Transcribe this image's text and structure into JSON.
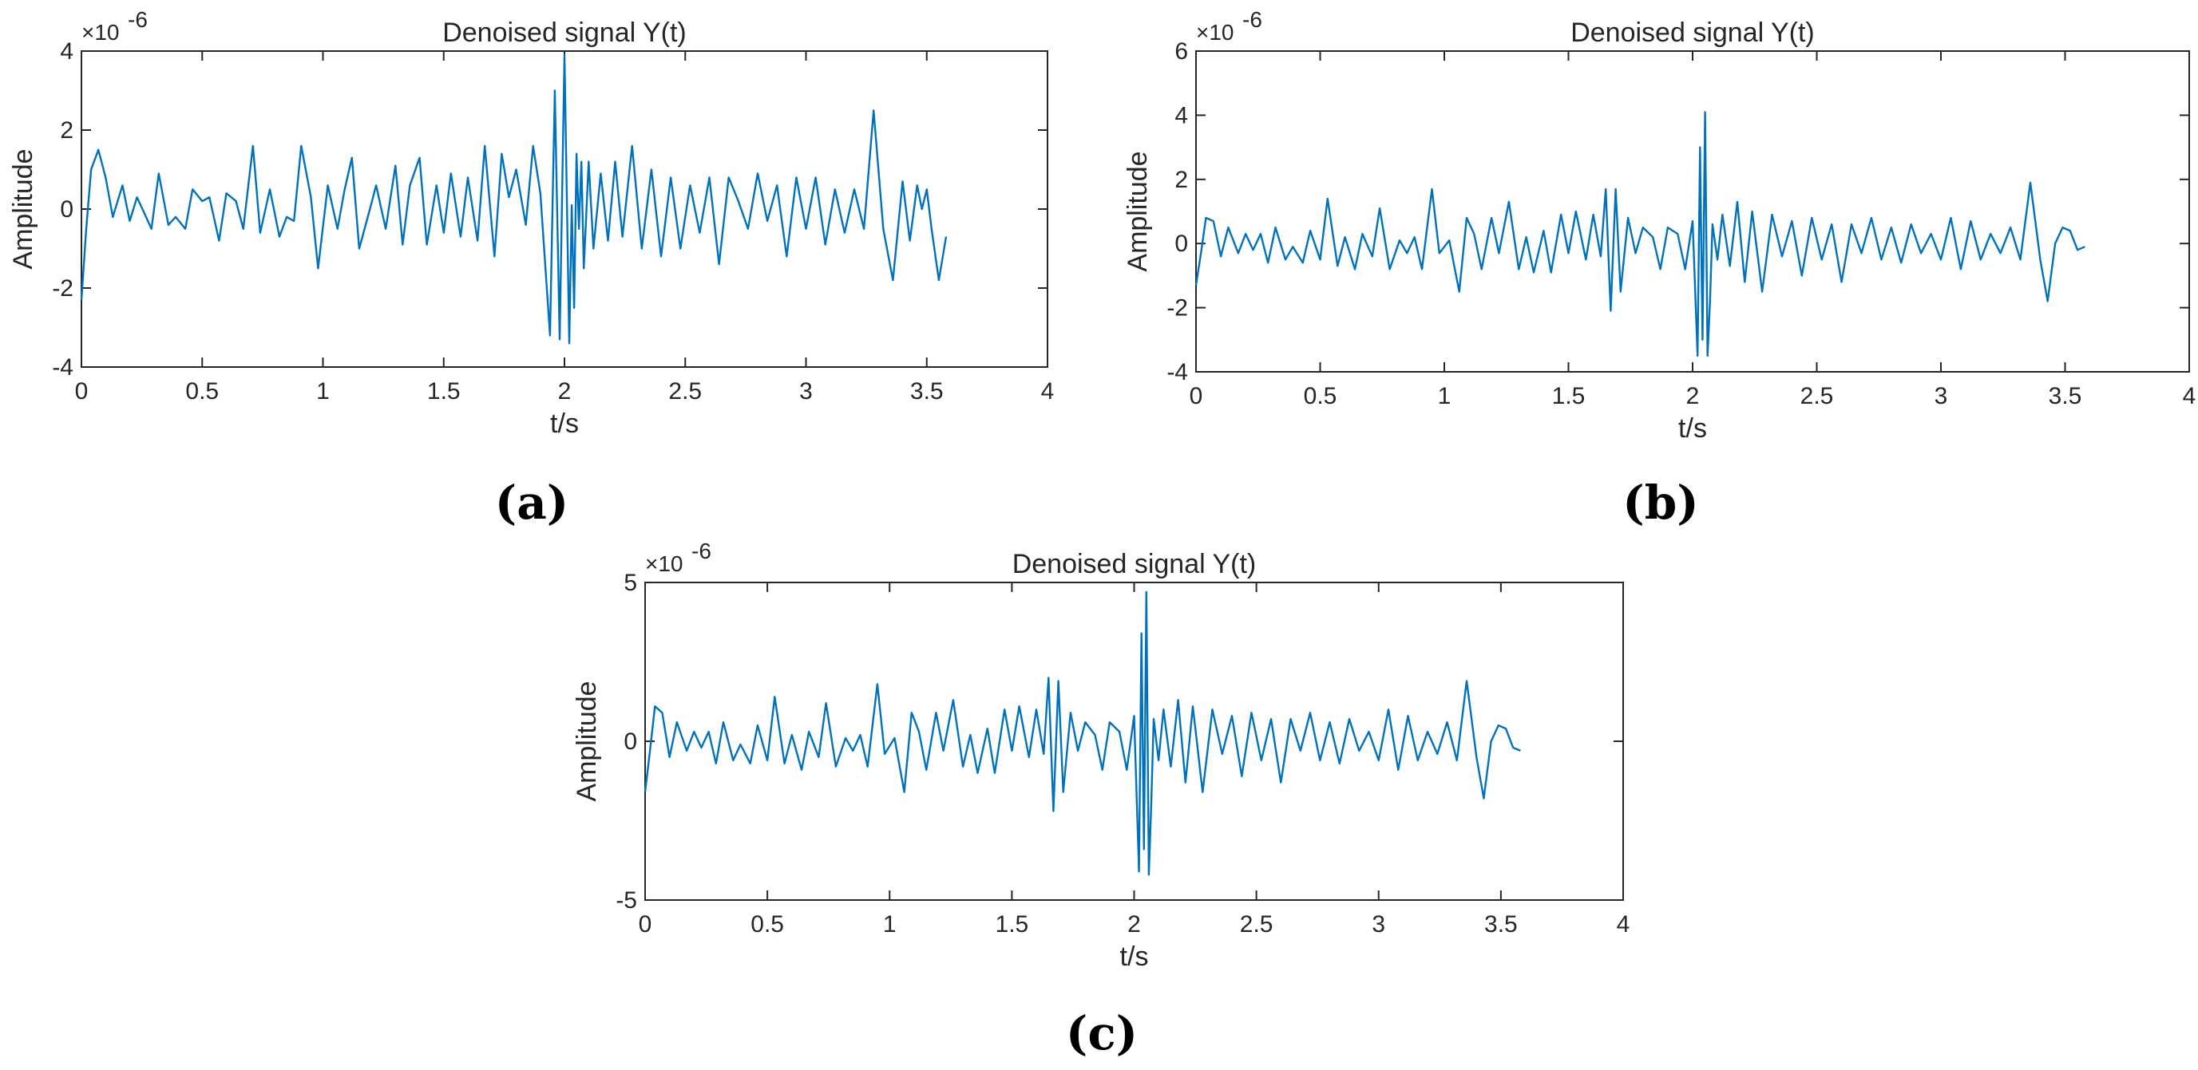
{
  "chart_data": [
    {
      "type": "line",
      "panel": "(a)",
      "title": "Denoised signal Y(t)",
      "xlabel": "t/s",
      "ylabel": "Amplitude",
      "y_multiplier": "×10",
      "y_exponent": "-6",
      "xlim": [
        0,
        4
      ],
      "ylim": [
        -4,
        4
      ],
      "xticks": [
        "0",
        "0.5",
        "1",
        "1.5",
        "2",
        "2.5",
        "3",
        "3.5",
        "4"
      ],
      "yticks": [
        "-4",
        "-2",
        "0",
        "2",
        "4"
      ],
      "series": [
        {
          "name": "Y(t)",
          "color": "#0072BD",
          "x": [
            0,
            0.02,
            0.04,
            0.07,
            0.1,
            0.13,
            0.17,
            0.2,
            0.23,
            0.26,
            0.29,
            0.32,
            0.36,
            0.39,
            0.43,
            0.46,
            0.5,
            0.53,
            0.57,
            0.6,
            0.64,
            0.67,
            0.71,
            0.74,
            0.78,
            0.82,
            0.85,
            0.88,
            0.91,
            0.95,
            0.98,
            1.02,
            1.06,
            1.09,
            1.12,
            1.15,
            1.19,
            1.22,
            1.26,
            1.3,
            1.33,
            1.36,
            1.4,
            1.43,
            1.47,
            1.5,
            1.53,
            1.57,
            1.6,
            1.64,
            1.67,
            1.71,
            1.74,
            1.77,
            1.8,
            1.84,
            1.87,
            1.9,
            1.94,
            1.96,
            1.98,
            2.0,
            2.02,
            2.03,
            2.04,
            2.05,
            2.06,
            2.07,
            2.08,
            2.1,
            2.12,
            2.15,
            2.18,
            2.21,
            2.24,
            2.28,
            2.32,
            2.36,
            2.4,
            2.44,
            2.48,
            2.52,
            2.56,
            2.6,
            2.64,
            2.68,
            2.72,
            2.76,
            2.8,
            2.84,
            2.88,
            2.92,
            2.96,
            3.0,
            3.04,
            3.08,
            3.12,
            3.16,
            3.2,
            3.24,
            3.28,
            3.32,
            3.36,
            3.4,
            3.43,
            3.46,
            3.48,
            3.5,
            3.52,
            3.55,
            3.58
          ],
          "y": [
            -2.3,
            -0.5,
            1.0,
            1.5,
            0.8,
            -0.2,
            0.6,
            -0.3,
            0.3,
            -0.1,
            -0.5,
            0.9,
            -0.4,
            -0.2,
            -0.5,
            0.5,
            0.2,
            0.3,
            -0.8,
            0.4,
            0.2,
            -0.5,
            1.6,
            -0.6,
            0.5,
            -0.7,
            -0.2,
            -0.3,
            1.6,
            0.3,
            -1.5,
            0.6,
            -0.5,
            0.5,
            1.3,
            -1.0,
            -0.1,
            0.6,
            -0.5,
            1.1,
            -0.9,
            0.6,
            1.3,
            -0.9,
            0.6,
            -0.6,
            0.9,
            -0.7,
            0.8,
            -0.8,
            1.6,
            -1.2,
            1.4,
            0.3,
            1.0,
            -0.4,
            1.6,
            0.4,
            -3.2,
            3.0,
            -3.3,
            3.9,
            -3.4,
            0.1,
            -2.5,
            1.4,
            -0.5,
            1.2,
            -1.5,
            1.2,
            -1.0,
            0.9,
            -0.8,
            1.2,
            -0.7,
            1.6,
            -1.0,
            1.0,
            -1.2,
            0.8,
            -1.0,
            0.6,
            -0.6,
            0.8,
            -1.4,
            0.8,
            0.2,
            -0.5,
            0.9,
            -0.3,
            0.6,
            -1.2,
            0.8,
            -0.5,
            0.8,
            -0.9,
            0.5,
            -0.6,
            0.5,
            -0.5,
            2.5,
            -0.5,
            -1.8,
            0.7,
            -0.8,
            0.6,
            0.0,
            0.5,
            -0.5,
            -1.8,
            -0.7
          ]
        }
      ]
    },
    {
      "type": "line",
      "panel": "(b)",
      "title": "Denoised signal Y(t)",
      "xlabel": "t/s",
      "ylabel": "Amplitude",
      "y_multiplier": "×10",
      "y_exponent": "-6",
      "xlim": [
        0,
        4
      ],
      "ylim": [
        -4,
        6
      ],
      "xticks": [
        "0",
        "0.5",
        "1",
        "1.5",
        "2",
        "2.5",
        "3",
        "3.5",
        "4"
      ],
      "yticks": [
        "-4",
        "-2",
        "0",
        "2",
        "4",
        "6"
      ],
      "series": [
        {
          "name": "Y(t)",
          "color": "#0072BD",
          "x": [
            0,
            0.02,
            0.04,
            0.07,
            0.1,
            0.13,
            0.17,
            0.2,
            0.23,
            0.26,
            0.29,
            0.32,
            0.36,
            0.39,
            0.43,
            0.46,
            0.5,
            0.53,
            0.57,
            0.6,
            0.64,
            0.67,
            0.71,
            0.74,
            0.78,
            0.82,
            0.85,
            0.88,
            0.91,
            0.95,
            0.98,
            1.02,
            1.06,
            1.09,
            1.12,
            1.15,
            1.19,
            1.22,
            1.26,
            1.3,
            1.33,
            1.36,
            1.4,
            1.43,
            1.47,
            1.5,
            1.53,
            1.57,
            1.6,
            1.63,
            1.65,
            1.67,
            1.69,
            1.71,
            1.74,
            1.77,
            1.8,
            1.84,
            1.87,
            1.9,
            1.94,
            1.97,
            2.0,
            2.02,
            2.03,
            2.04,
            2.05,
            2.06,
            2.07,
            2.08,
            2.1,
            2.12,
            2.15,
            2.18,
            2.21,
            2.24,
            2.28,
            2.32,
            2.36,
            2.4,
            2.44,
            2.48,
            2.52,
            2.56,
            2.6,
            2.64,
            2.68,
            2.72,
            2.76,
            2.8,
            2.84,
            2.88,
            2.92,
            2.96,
            3.0,
            3.04,
            3.08,
            3.12,
            3.16,
            3.2,
            3.24,
            3.28,
            3.32,
            3.36,
            3.4,
            3.43,
            3.46,
            3.49,
            3.52,
            3.55,
            3.58
          ],
          "y": [
            -1.3,
            -0.3,
            0.8,
            0.7,
            -0.4,
            0.5,
            -0.3,
            0.3,
            -0.2,
            0.3,
            -0.6,
            0.5,
            -0.5,
            -0.1,
            -0.6,
            0.4,
            -0.5,
            1.4,
            -0.7,
            0.2,
            -0.8,
            0.3,
            -0.4,
            1.1,
            -0.8,
            0.1,
            -0.3,
            0.2,
            -0.8,
            1.7,
            -0.3,
            0.1,
            -1.5,
            0.8,
            0.3,
            -0.8,
            0.8,
            -0.3,
            1.3,
            -0.8,
            0.2,
            -0.9,
            0.4,
            -0.9,
            0.9,
            -0.3,
            1.0,
            -0.5,
            0.9,
            -0.4,
            1.7,
            -2.1,
            1.7,
            -1.5,
            0.8,
            -0.3,
            0.5,
            0.2,
            -0.8,
            0.5,
            0.3,
            -0.8,
            0.7,
            -3.5,
            3.0,
            -3.0,
            4.1,
            -3.5,
            -1.8,
            0.6,
            -0.5,
            0.9,
            -0.7,
            1.3,
            -1.2,
            1.0,
            -1.5,
            0.9,
            -0.4,
            0.7,
            -1.0,
            0.8,
            -0.5,
            0.6,
            -1.2,
            0.6,
            -0.3,
            0.8,
            -0.5,
            0.5,
            -0.6,
            0.6,
            -0.3,
            0.3,
            -0.5,
            0.8,
            -0.8,
            0.7,
            -0.5,
            0.3,
            -0.3,
            0.5,
            -0.5,
            1.9,
            -0.5,
            -1.8,
            0.0,
            0.5,
            0.4,
            -0.2,
            -0.1
          ]
        }
      ]
    },
    {
      "type": "line",
      "panel": "(c)",
      "title": "Denoised signal Y(t)",
      "xlabel": "t/s",
      "ylabel": "Amplitude",
      "y_multiplier": "×10",
      "y_exponent": "-6",
      "xlim": [
        0,
        4
      ],
      "ylim": [
        -5,
        5
      ],
      "xticks": [
        "0",
        "0.5",
        "1",
        "1.5",
        "2",
        "2.5",
        "3",
        "3.5",
        "4"
      ],
      "yticks": [
        "-5",
        "0",
        "5"
      ],
      "series": [
        {
          "name": "Y(t)",
          "color": "#0072BD",
          "x": [
            0,
            0.02,
            0.04,
            0.07,
            0.1,
            0.13,
            0.17,
            0.2,
            0.23,
            0.26,
            0.29,
            0.32,
            0.36,
            0.39,
            0.43,
            0.46,
            0.5,
            0.53,
            0.57,
            0.6,
            0.64,
            0.67,
            0.71,
            0.74,
            0.78,
            0.82,
            0.85,
            0.88,
            0.91,
            0.95,
            0.98,
            1.02,
            1.06,
            1.09,
            1.12,
            1.15,
            1.19,
            1.22,
            1.26,
            1.3,
            1.33,
            1.36,
            1.4,
            1.43,
            1.47,
            1.5,
            1.53,
            1.57,
            1.6,
            1.63,
            1.65,
            1.67,
            1.69,
            1.71,
            1.74,
            1.77,
            1.8,
            1.84,
            1.87,
            1.9,
            1.94,
            1.97,
            2.0,
            2.02,
            2.03,
            2.04,
            2.05,
            2.06,
            2.07,
            2.08,
            2.1,
            2.12,
            2.15,
            2.18,
            2.21,
            2.24,
            2.28,
            2.32,
            2.36,
            2.4,
            2.44,
            2.48,
            2.52,
            2.56,
            2.6,
            2.64,
            2.68,
            2.72,
            2.76,
            2.8,
            2.84,
            2.88,
            2.92,
            2.96,
            3.0,
            3.04,
            3.08,
            3.12,
            3.16,
            3.2,
            3.24,
            3.28,
            3.32,
            3.36,
            3.4,
            3.43,
            3.46,
            3.49,
            3.52,
            3.55,
            3.58
          ],
          "y": [
            -1.6,
            -0.3,
            1.1,
            0.9,
            -0.5,
            0.6,
            -0.3,
            0.3,
            -0.2,
            0.3,
            -0.7,
            0.6,
            -0.6,
            -0.1,
            -0.7,
            0.5,
            -0.6,
            1.4,
            -0.7,
            0.2,
            -0.9,
            0.3,
            -0.5,
            1.2,
            -0.8,
            0.1,
            -0.3,
            0.2,
            -0.8,
            1.8,
            -0.4,
            0.1,
            -1.6,
            0.9,
            0.3,
            -0.9,
            0.9,
            -0.3,
            1.3,
            -0.8,
            0.2,
            -1.0,
            0.4,
            -1.0,
            1.0,
            -0.3,
            1.1,
            -0.5,
            1.0,
            -0.4,
            2.0,
            -2.2,
            1.9,
            -1.6,
            0.9,
            -0.3,
            0.6,
            0.2,
            -0.9,
            0.6,
            0.3,
            -0.9,
            0.8,
            -4.1,
            3.4,
            -3.4,
            4.7,
            -4.2,
            -2.0,
            0.7,
            -0.6,
            1.0,
            -0.8,
            1.3,
            -1.3,
            1.1,
            -1.6,
            1.0,
            -0.4,
            0.8,
            -1.1,
            0.9,
            -0.6,
            0.7,
            -1.3,
            0.7,
            -0.3,
            0.9,
            -0.6,
            0.6,
            -0.7,
            0.7,
            -0.3,
            0.3,
            -0.6,
            1.0,
            -0.9,
            0.8,
            -0.6,
            0.3,
            -0.4,
            0.6,
            -0.6,
            1.9,
            -0.5,
            -1.8,
            0.0,
            0.5,
            0.4,
            -0.2,
            -0.3
          ]
        }
      ]
    }
  ]
}
